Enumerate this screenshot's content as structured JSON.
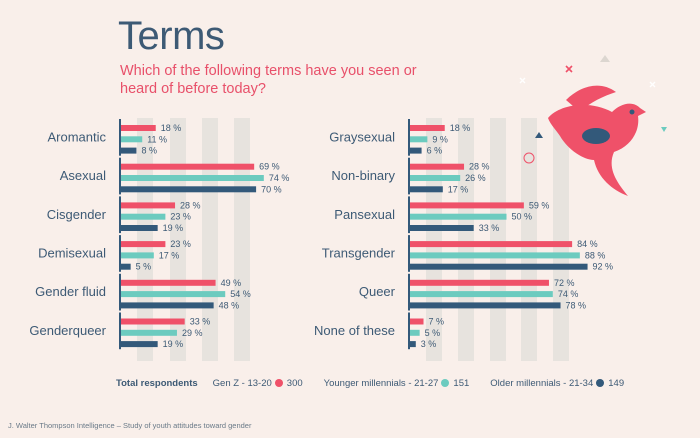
{
  "header": {
    "title": "Terms",
    "subtitle": "Which of the following terms have you seen or heard of before today?"
  },
  "colors": {
    "gen_z": "#ef5169",
    "younger_millennials": "#6ccbbf",
    "older_millennials": "#33597a",
    "stripe": "#e7e3de",
    "bird": "#ef5169"
  },
  "chart_data": [
    {
      "type": "bar",
      "orientation": "horizontal",
      "unit": "%",
      "xlim": [
        0,
        100
      ],
      "categories": [
        "Aromantic",
        "Asexual",
        "Cisgender",
        "Demisexual",
        "Gender fluid",
        "Genderqueer"
      ],
      "series": [
        {
          "name": "Gen Z - 13-20",
          "values": [
            18,
            69,
            28,
            23,
            49,
            33
          ]
        },
        {
          "name": "Younger millennials - 21-27",
          "values": [
            11,
            74,
            23,
            17,
            54,
            29
          ]
        },
        {
          "name": "Older millennials - 21-34",
          "values": [
            8,
            70,
            19,
            5,
            48,
            19
          ]
        }
      ]
    },
    {
      "type": "bar",
      "orientation": "horizontal",
      "unit": "%",
      "xlim": [
        0,
        100
      ],
      "categories": [
        "Graysexual",
        "Non-binary",
        "Pansexual",
        "Transgender",
        "Queer",
        "None of these"
      ],
      "series": [
        {
          "name": "Gen Z - 13-20",
          "values": [
            18,
            28,
            59,
            84,
            72,
            7
          ]
        },
        {
          "name": "Younger millennials - 21-27",
          "values": [
            9,
            26,
            50,
            88,
            74,
            5
          ]
        },
        {
          "name": "Older millennials - 21-34",
          "values": [
            6,
            17,
            33,
            92,
            78,
            3
          ]
        }
      ]
    }
  ],
  "legend": {
    "label": "Total respondents",
    "items": [
      {
        "name": "Gen Z - 13-20",
        "count": "300"
      },
      {
        "name": "Younger millennials - 21-27",
        "count": "151"
      },
      {
        "name": "Older millennials - 21-34",
        "count": "149"
      }
    ]
  },
  "footer": {
    "source": "J. Walter Thompson Intelligence – Study of youth attitudes toward gender"
  }
}
